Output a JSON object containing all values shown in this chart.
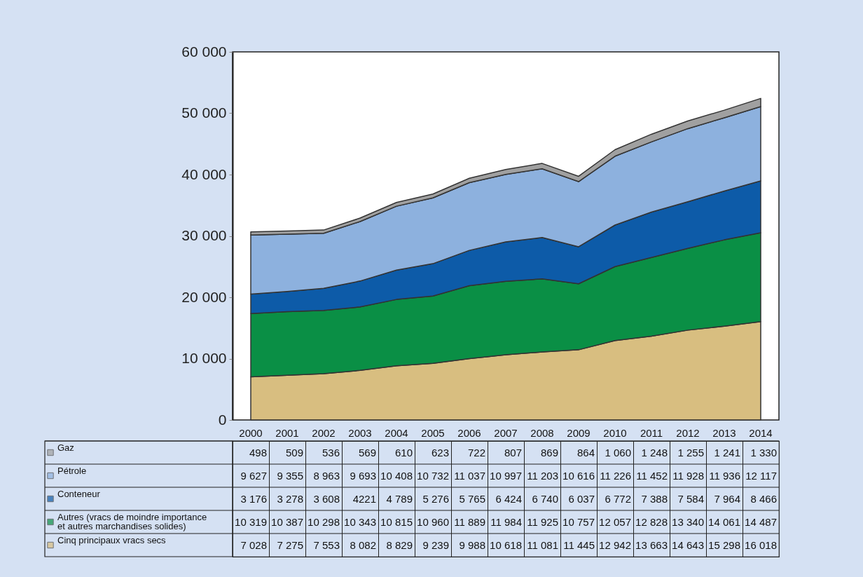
{
  "chart_data": {
    "type": "area",
    "stacked": true,
    "legend": "bottom",
    "categories": [
      "2000",
      "2001",
      "2002",
      "2003",
      "2004",
      "2005",
      "2006",
      "2007",
      "2008",
      "2009",
      "2010",
      "2011",
      "2012",
      "2013",
      "2014"
    ],
    "ylim": [
      0,
      60000
    ],
    "yticks": [
      {
        "value": 0,
        "label": "0"
      },
      {
        "value": 10000,
        "label": "10 000"
      },
      {
        "value": 20000,
        "label": "20 000"
      },
      {
        "value": 30000,
        "label": "30 000"
      },
      {
        "value": 40000,
        "label": "40 000"
      },
      {
        "value": 50000,
        "label": "50 000"
      },
      {
        "value": 60000,
        "label": "60 000"
      }
    ],
    "series": [
      {
        "name": "Cinq principaux vracs secs",
        "color": "#d8be80",
        "values": [
          7028,
          7275,
          7553,
          8082,
          8829,
          9239,
          9988,
          10618,
          11081,
          11445,
          12942,
          13663,
          14643,
          15298,
          16018
        ],
        "value_labels": [
          "7 028",
          "7 275",
          "7 553",
          "8 082",
          "8 829",
          "9 239",
          "9 988",
          "10 618",
          "11 081",
          "11 445",
          "12 942",
          "13 663",
          "14 643",
          "15 298",
          "16 018"
        ]
      },
      {
        "name": "Autres (vracs de moindre importance et autres marchandises solides)",
        "color": "#0a8f45",
        "values": [
          10319,
          10387,
          10298,
          10343,
          10815,
          10960,
          11889,
          11984,
          11925,
          10757,
          12057,
          12828,
          13340,
          14061,
          14487
        ],
        "value_labels": [
          "10 319",
          "10 387",
          "10 298",
          "10 343",
          "10 815",
          "10 960",
          "11 889",
          "11 984",
          "11 925",
          "10 757",
          "12 057",
          "12 828",
          "13 340",
          "14 061",
          "14 487"
        ]
      },
      {
        "name": "Conteneur",
        "color": "#0d5ba8",
        "values": [
          3176,
          3278,
          3608,
          4221,
          4789,
          5276,
          5765,
          6424,
          6740,
          6037,
          6772,
          7388,
          7584,
          7964,
          8466
        ],
        "value_labels": [
          "3 176",
          "3 278",
          "3 608",
          "4221",
          "4 789",
          "5 276",
          "5 765",
          "6 424",
          "6 740",
          "6 037",
          "6 772",
          "7 388",
          "7 584",
          "7 964",
          "8 466"
        ]
      },
      {
        "name": "Pétrole",
        "color": "#8db1de",
        "values": [
          9627,
          9355,
          8963,
          9693,
          10408,
          10732,
          11037,
          10997,
          11203,
          10616,
          11226,
          11452,
          11928,
          11936,
          12117
        ],
        "value_labels": [
          "9 627",
          "9 355",
          "8 963",
          "9 693",
          "10 408",
          "10 732",
          "11 037",
          "10 997",
          "11 203",
          "10 616",
          "11 226",
          "11 452",
          "11 928",
          "11 936",
          "12 117"
        ]
      },
      {
        "name": "Gaz",
        "color": "#a0a0a0",
        "values": [
          498,
          509,
          536,
          569,
          610,
          623,
          722,
          807,
          869,
          864,
          1060,
          1248,
          1255,
          1241,
          1330
        ],
        "value_labels": [
          "498",
          "509",
          "536",
          "569",
          "610",
          "623",
          "722",
          "807",
          "869",
          "864",
          "1 060",
          "1 248",
          "1 255",
          "1 241",
          "1 330"
        ]
      }
    ]
  }
}
